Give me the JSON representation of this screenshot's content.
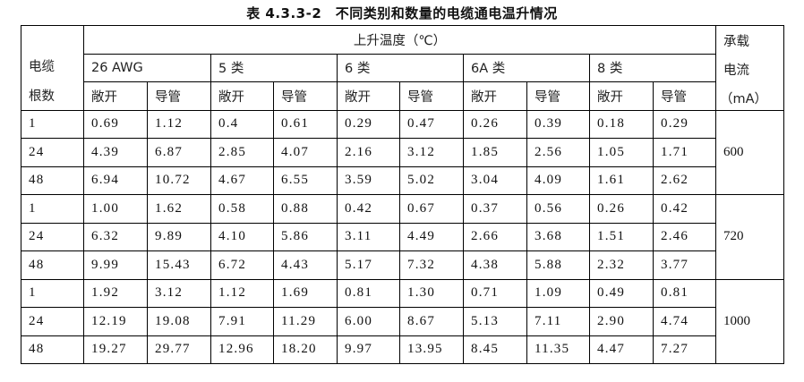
{
  "title": "表 4.3.3-2　不同类别和数量的电缆通电温升情况",
  "headers": {
    "count_line1": "电缆",
    "count_line2": "根数",
    "temp_rise": "上升温度（℃）",
    "current_line1": "承载",
    "current_line2": "电流",
    "current_line3": "（mA）",
    "categories": [
      "26 AWG",
      "5 类",
      "6 类",
      "6A 类",
      "8 类"
    ],
    "sub": [
      "敞开",
      "导管"
    ]
  },
  "groups": [
    {
      "current": "600",
      "rows": [
        {
          "count": "1",
          "values": [
            "0.69",
            "1.12",
            "0.4",
            "0.61",
            "0.29",
            "0.47",
            "0.26",
            "0.39",
            "0.18",
            "0.29"
          ]
        },
        {
          "count": "24",
          "values": [
            "4.39",
            "6.87",
            "2.85",
            "4.07",
            "2.16",
            "3.12",
            "1.85",
            "2.56",
            "1.05",
            "1.71"
          ]
        },
        {
          "count": "48",
          "values": [
            "6.94",
            "10.72",
            "4.67",
            "6.55",
            "3.59",
            "5.02",
            "3.04",
            "4.09",
            "1.61",
            "2.62"
          ]
        }
      ]
    },
    {
      "current": "720",
      "rows": [
        {
          "count": "1",
          "values": [
            "1.00",
            "1.62",
            "0.58",
            "0.88",
            "0.42",
            "0.67",
            "0.37",
            "0.56",
            "0.26",
            "0.42"
          ]
        },
        {
          "count": "24",
          "values": [
            "6.32",
            "9.89",
            "4.10",
            "5.86",
            "3.11",
            "4.49",
            "2.66",
            "3.68",
            "1.51",
            "2.46"
          ]
        },
        {
          "count": "48",
          "values": [
            "9.99",
            "15.43",
            "6.72",
            "4.43",
            "5.17",
            "7.32",
            "4.38",
            "5.88",
            "2.32",
            "3.77"
          ]
        }
      ]
    },
    {
      "current": "1000",
      "rows": [
        {
          "count": "1",
          "values": [
            "1.92",
            "3.12",
            "1.12",
            "1.69",
            "0.81",
            "1.30",
            "0.71",
            "1.09",
            "0.49",
            "0.81"
          ]
        },
        {
          "count": "24",
          "values": [
            "12.19",
            "19.08",
            "7.91",
            "11.29",
            "6.00",
            "8.67",
            "5.13",
            "7.11",
            "2.90",
            "4.74"
          ]
        },
        {
          "count": "48",
          "values": [
            "19.27",
            "29.77",
            "12.96",
            "18.20",
            "9.97",
            "13.95",
            "8.45",
            "11.35",
            "4.47",
            "7.27"
          ]
        }
      ]
    }
  ]
}
